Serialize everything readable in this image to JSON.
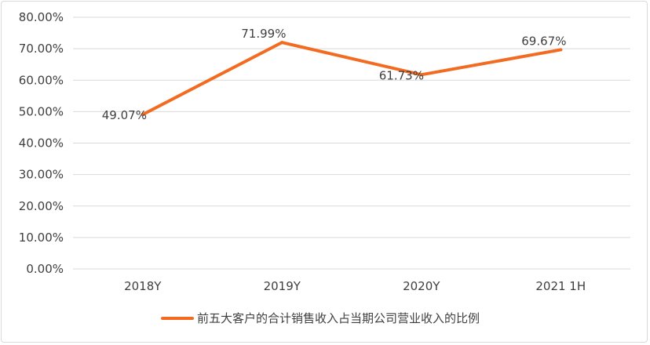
{
  "chart_data": {
    "type": "line",
    "categories": [
      "2018Y",
      "2019Y",
      "2020Y",
      "2021 1H"
    ],
    "series": [
      {
        "name": "前五大客户的合计销售收入占当期公司营业收入的比例",
        "values": [
          49.07,
          71.99,
          61.73,
          69.67
        ],
        "data_labels": [
          "49.07%",
          "71.99%",
          "61.73%",
          "69.67%"
        ],
        "color": "#f26b21"
      }
    ],
    "y_ticks": [
      "0.00%",
      "10.00%",
      "20.00%",
      "30.00%",
      "40.00%",
      "50.00%",
      "60.00%",
      "70.00%",
      "80.00%"
    ],
    "ylim": [
      0,
      80
    ],
    "grid": true,
    "legend_position": "bottom",
    "colors": {
      "grid": "#d9d9d9",
      "text": "#3f3f3f",
      "line": "#f26b21"
    }
  }
}
